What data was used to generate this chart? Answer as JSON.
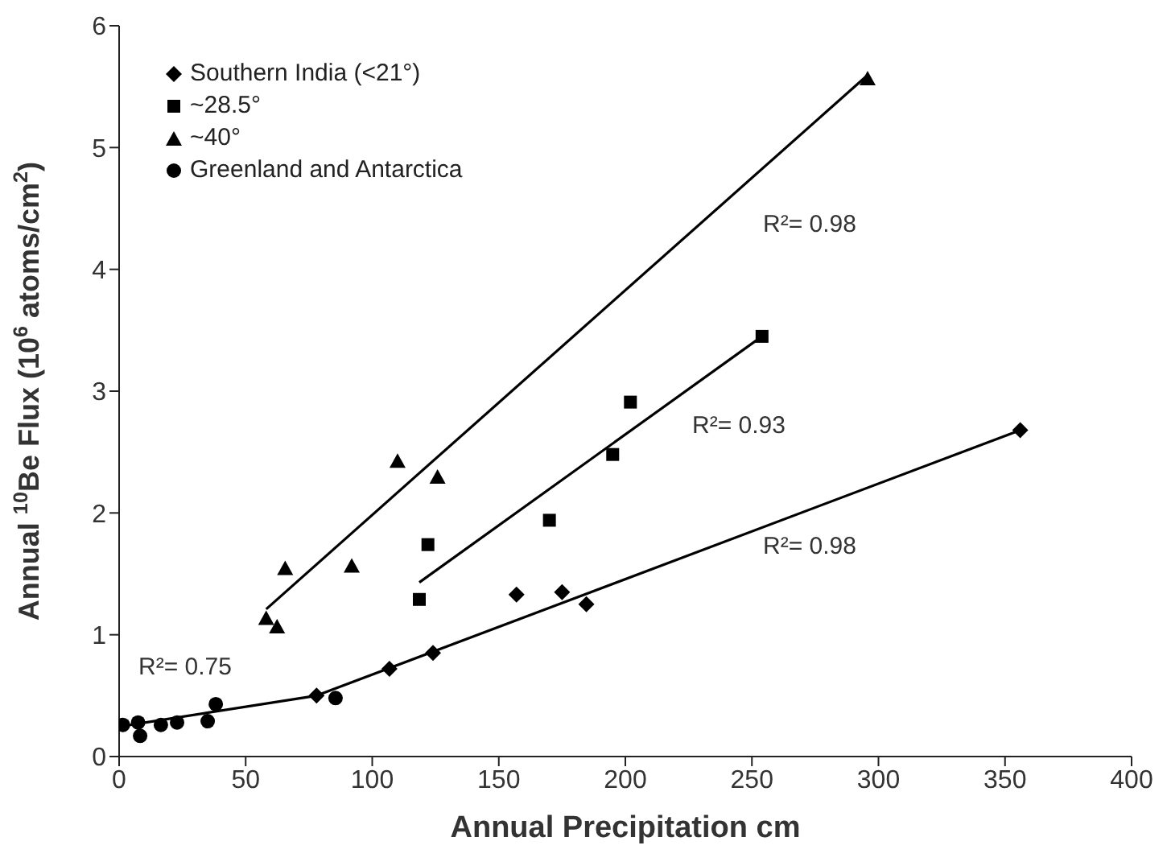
{
  "chart_data": {
    "type": "scatter",
    "xlabel": "Annual Precipitation cm",
    "ylabel": "Annual $^{10}$Be Flux (10$^{6}$ atoms/cm$^{2}$)",
    "xlim": [
      0,
      400
    ],
    "xticks": [
      0,
      50,
      100,
      150,
      200,
      250,
      300,
      350,
      400
    ],
    "ylim": [
      0,
      6
    ],
    "yticks": [
      0,
      1,
      2,
      3,
      4,
      5,
      6
    ],
    "grid": false,
    "legend": "top left",
    "series": [
      {
        "name": "Southern India (<21°)",
        "marker": "diamond",
        "color": "#000000",
        "x": [
          78,
          106.8,
          124,
          157,
          175,
          184.6,
          356
        ],
        "values": [
          0.5,
          0.72,
          0.85,
          1.33,
          1.35,
          1.25,
          2.68
        ]
      },
      {
        "name": "~28.5°",
        "marker": "square",
        "color": "#000000",
        "x": [
          118.6,
          122,
          170,
          195,
          202,
          254
        ],
        "values": [
          1.29,
          1.74,
          1.94,
          2.48,
          2.91,
          3.45
        ]
      },
      {
        "name": "~40°",
        "marker": "triangle",
        "color": "#000000",
        "x": [
          58.1,
          62.4,
          65.6,
          91.9,
          110,
          125.8,
          295.7
        ],
        "values": [
          1.14,
          1.07,
          1.55,
          1.57,
          2.43,
          2.3,
          5.57
        ]
      },
      {
        "name": "Greenland and Antarctica",
        "marker": "circle",
        "color": "#000000",
        "x": [
          1.5,
          7.5,
          8.3,
          16.5,
          22.9,
          35,
          38.2,
          85.5
        ],
        "values": [
          0.26,
          0.28,
          0.17,
          0.26,
          0.28,
          0.29,
          0.43,
          0.48
        ]
      },
      {
        "type": "line",
        "marker": "none",
        "line_style": "solid",
        "color": "#000000",
        "x": [
          58.1,
          296
        ],
        "values": [
          1.21,
          5.6
        ]
      },
      {
        "type": "line",
        "marker": "none",
        "line_style": "solid",
        "color": "#000000",
        "x": [
          118.6,
          254
        ],
        "values": [
          1.43,
          3.45
        ]
      },
      {
        "type": "line",
        "marker": "none",
        "line_style": "solid",
        "color": "#000000",
        "x": [
          78,
          356
        ],
        "values": [
          0.5,
          2.68
        ]
      },
      {
        "type": "line",
        "marker": "none",
        "line_style": "solid",
        "color": "#000000",
        "x": [
          1.5,
          78
        ],
        "values": [
          0.25,
          0.5
        ]
      }
    ],
    "annotations": [
      "R²= 0.98",
      "R²= 0.93",
      "R²= 0.98",
      "R²= 0.75"
    ]
  }
}
